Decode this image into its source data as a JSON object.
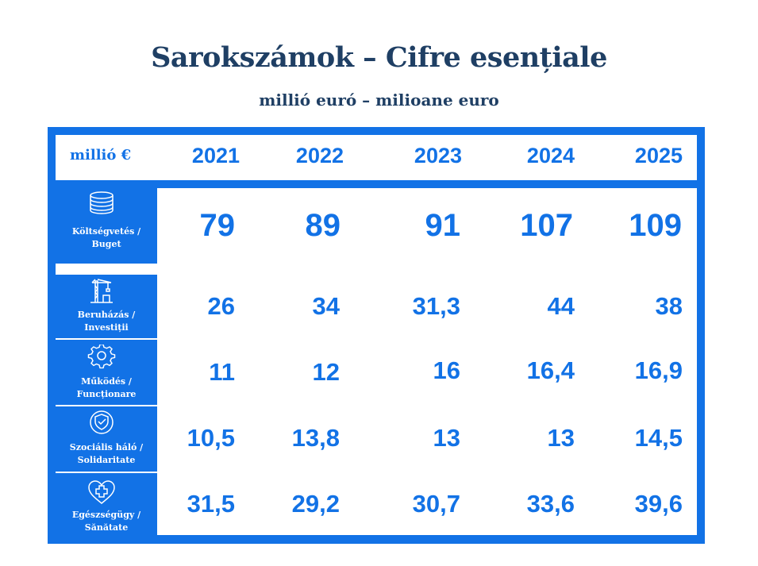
{
  "title": "Sarokszámok – Cifre esențiale",
  "subtitle": "millió euró – milioane euro",
  "table": {
    "corner_label": "millió €",
    "years": [
      "2021",
      "2022",
      "2023",
      "2024",
      "2025"
    ],
    "rows": [
      {
        "label_hu": "Költségvetés /",
        "label_ro": "Buget",
        "icon": "coins-stack-icon",
        "values": [
          "79",
          "89",
          "91",
          "107",
          "109"
        ]
      },
      {
        "label_hu": "Beruházás /",
        "label_ro": "Investiții",
        "icon": "crane-icon",
        "values": [
          "26",
          "34",
          "31,3",
          "44",
          "38"
        ]
      },
      {
        "label_hu": "Működés /",
        "label_ro": "Funcționare",
        "icon": "gear-icon",
        "values": [
          "11",
          "12",
          "16",
          "16,4",
          "16,9"
        ]
      },
      {
        "label_hu": "Szociális háló /",
        "label_ro": "Solidaritate",
        "icon": "shield-check-icon",
        "values": [
          "10,5",
          "13,8",
          "13",
          "13",
          "14,5"
        ]
      },
      {
        "label_hu": "Egészségügy /",
        "label_ro": "Sănătate",
        "icon": "heart-plus-icon",
        "values": [
          "31,5",
          "29,2",
          "30,7",
          "33,6",
          "39,6"
        ]
      }
    ]
  },
  "colors": {
    "accent": "#1272e6",
    "title": "#1f3f64",
    "background": "#ffffff"
  }
}
